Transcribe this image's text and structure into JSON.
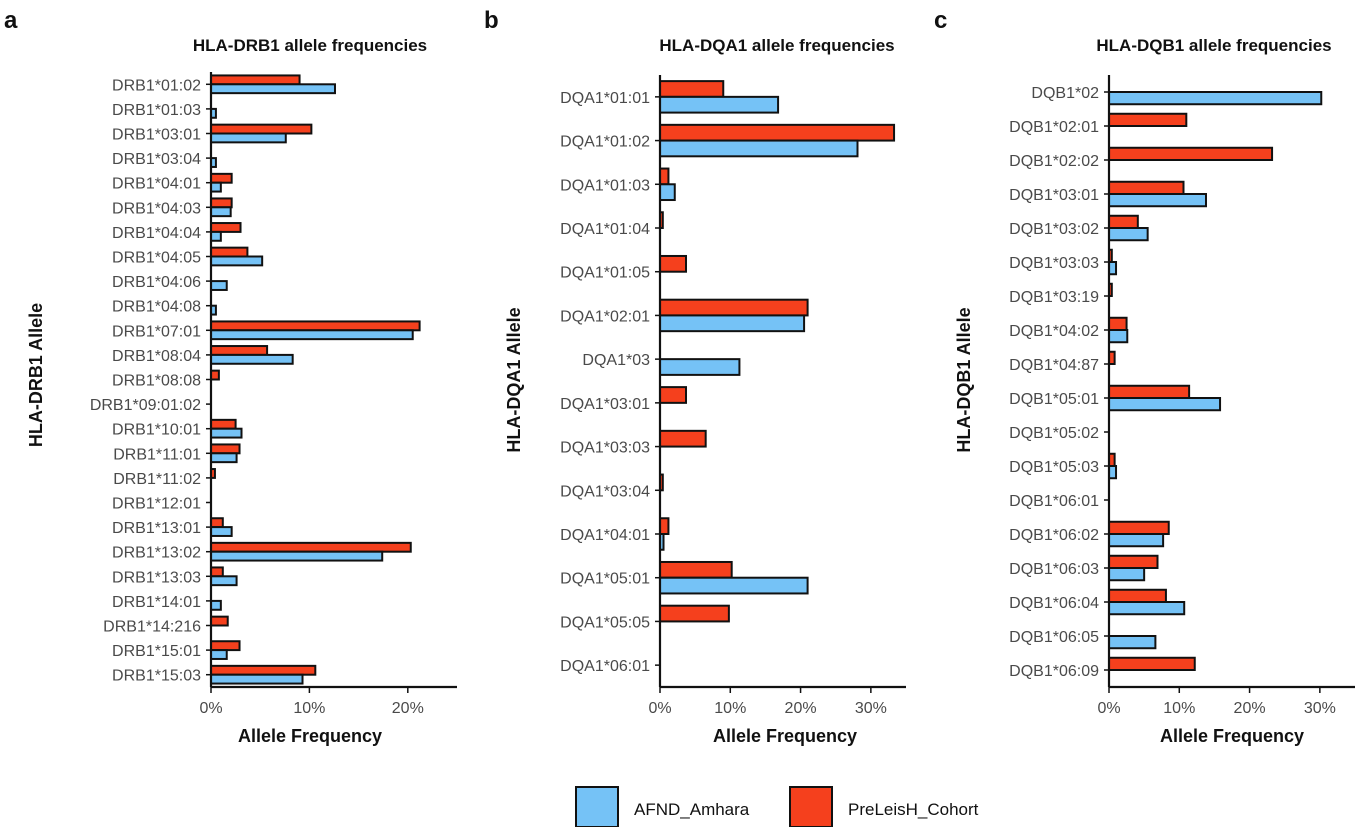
{
  "legend": {
    "entries": [
      {
        "name": "AFND_Amhara",
        "color": "#75C2F6"
      },
      {
        "name": "PreLeisH_Cohort",
        "color": "#F5401D"
      }
    ]
  },
  "chart_data": [
    {
      "type": "bar",
      "orientation": "horizontal",
      "panel": "a",
      "title": "HLA-DRB1 allele frequencies",
      "xlabel": "Allele Frequency",
      "ylabel": "HLA-DRB1 Allele",
      "xlim": [
        0,
        0.25
      ],
      "xticks": [
        0,
        0.1,
        0.2
      ],
      "xtick_labels": [
        "0%",
        "10%",
        "20%"
      ],
      "categories": [
        "DRB1*01:02",
        "DRB1*01:03",
        "DRB1*03:01",
        "DRB1*03:04",
        "DRB1*04:01",
        "DRB1*04:03",
        "DRB1*04:04",
        "DRB1*04:05",
        "DRB1*04:06",
        "DRB1*04:08",
        "DRB1*07:01",
        "DRB1*08:04",
        "DRB1*08:08",
        "DRB1*09:01:02",
        "DRB1*10:01",
        "DRB1*11:01",
        "DRB1*11:02",
        "DRB1*12:01",
        "DRB1*13:01",
        "DRB1*13:02",
        "DRB1*13:03",
        "DRB1*14:01",
        "DRB1*14:216",
        "DRB1*15:01",
        "DRB1*15:03"
      ],
      "series": [
        {
          "name": "AFND_Amhara",
          "values": [
            0.126,
            0.005,
            0.076,
            0.005,
            0.01,
            0.02,
            0.01,
            0.052,
            0.016,
            0.005,
            0.205,
            0.083,
            0,
            0,
            0.031,
            0.026,
            0,
            0,
            0.021,
            0.174,
            0.026,
            0.01,
            0,
            0.016,
            0.093
          ]
        },
        {
          "name": "PreLeisH_Cohort",
          "values": [
            0.09,
            0,
            0.102,
            0,
            0.021,
            0.021,
            0.03,
            0.037,
            0,
            0,
            0.212,
            0.057,
            0.008,
            0,
            0.025,
            0.029,
            0.004,
            0,
            0.012,
            0.203,
            0.012,
            0,
            0.017,
            0.029,
            0.106
          ]
        }
      ]
    },
    {
      "type": "bar",
      "orientation": "horizontal",
      "panel": "b",
      "title": "HLA-DQA1 allele frequencies",
      "xlabel": "Allele Frequency",
      "ylabel": "HLA-DQA1 Allele",
      "xlim": [
        0,
        0.35
      ],
      "xticks": [
        0,
        0.1,
        0.2,
        0.3
      ],
      "xtick_labels": [
        "0%",
        "10%",
        "20%",
        "30%"
      ],
      "categories": [
        "DQA1*01:01",
        "DQA1*01:02",
        "DQA1*01:03",
        "DQA1*01:04",
        "DQA1*01:05",
        "DQA1*02:01",
        "DQA1*03",
        "DQA1*03:01",
        "DQA1*03:03",
        "DQA1*03:04",
        "DQA1*04:01",
        "DQA1*05:01",
        "DQA1*05:05",
        "DQA1*06:01"
      ],
      "series": [
        {
          "name": "AFND_Amhara",
          "values": [
            0.168,
            0.281,
            0.021,
            0,
            0,
            0.205,
            0.113,
            0,
            0,
            0,
            0.005,
            0.21,
            0,
            0
          ]
        },
        {
          "name": "PreLeisH_Cohort",
          "values": [
            0.09,
            0.333,
            0.012,
            0.004,
            0.037,
            0.21,
            0,
            0.037,
            0.065,
            0.004,
            0.012,
            0.102,
            0.098,
            0
          ]
        }
      ]
    },
    {
      "type": "bar",
      "orientation": "horizontal",
      "panel": "c",
      "title": "HLA-DQB1 allele frequencies",
      "xlabel": "Allele Frequency",
      "ylabel": "HLA-DQB1 Allele",
      "xlim": [
        0,
        0.35
      ],
      "xticks": [
        0,
        0.1,
        0.2,
        0.3
      ],
      "xtick_labels": [
        "0%",
        "10%",
        "20%",
        "30%"
      ],
      "categories": [
        "DQB1*02",
        "DQB1*02:01",
        "DQB1*02:02",
        "DQB1*03:01",
        "DQB1*03:02",
        "DQB1*03:03",
        "DQB1*03:19",
        "DQB1*04:02",
        "DQB1*04:87",
        "DQB1*05:01",
        "DQB1*05:02",
        "DQB1*05:03",
        "DQB1*06:01",
        "DQB1*06:02",
        "DQB1*06:03",
        "DQB1*06:04",
        "DQB1*06:05",
        "DQB1*06:09"
      ],
      "series": [
        {
          "name": "AFND_Amhara",
          "values": [
            0.302,
            0,
            0,
            0.138,
            0.055,
            0.01,
            0,
            0.026,
            0,
            0.158,
            0,
            0.01,
            0,
            0.077,
            0.05,
            0.107,
            0.066,
            0
          ]
        },
        {
          "name": "PreLeisH_Cohort",
          "values": [
            0,
            0.11,
            0.232,
            0.106,
            0.041,
            0.004,
            0.004,
            0.025,
            0.008,
            0.114,
            0,
            0.008,
            0,
            0.085,
            0.069,
            0.081,
            0,
            0.122
          ]
        }
      ]
    }
  ]
}
